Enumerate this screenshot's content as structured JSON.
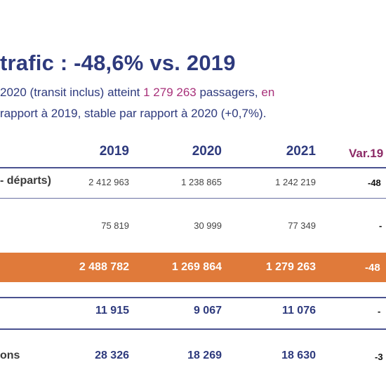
{
  "title": "trafic : -48,6% vs. 2019",
  "subtitle": {
    "line1_a": "2020 (transit inclus) atteint ",
    "line1_highlight": "1 279 263",
    "line1_b": " passagers, ",
    "line1_highlight2": "en",
    "line2": "rapport à 2019, stable par rapport à 2020 (+0,7%)."
  },
  "table": {
    "headers": [
      "2019",
      "2020",
      "2021",
      "Var.19"
    ],
    "rows": [
      {
        "label": "- départs)",
        "values": [
          "2 412 963",
          "1 238 865",
          "1 242 219"
        ],
        "var": "-48"
      },
      {
        "label": "",
        "values": [
          "75 819",
          "30 999",
          "77 349"
        ],
        "var": "-"
      },
      {
        "label": "",
        "values": [
          "2 488 782",
          "1 269 864",
          "1 279 263"
        ],
        "var": "-48"
      },
      {
        "label": "",
        "values": [
          "11 915",
          "9 067",
          "11 076"
        ],
        "var": "-"
      },
      {
        "label": "ons",
        "values": [
          "28 326",
          "18 269",
          "18 630"
        ],
        "var": "-3"
      }
    ]
  },
  "colors": {
    "primary": "#2e3a7d",
    "highlight": "#a8317a",
    "band": "#e07a3a"
  }
}
